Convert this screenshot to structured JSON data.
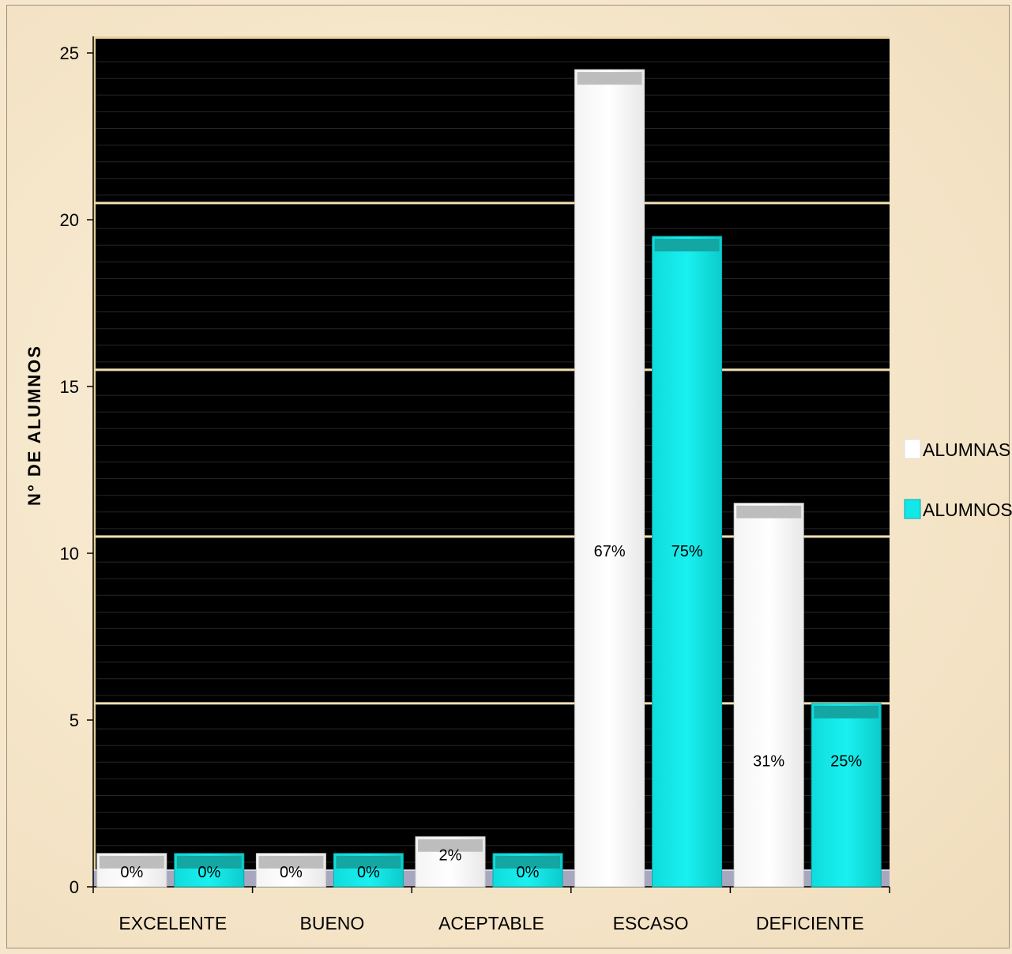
{
  "chart_data": {
    "type": "bar",
    "title": "",
    "xlabel": "",
    "ylabel": "N° DE ALUMNOS",
    "categories": [
      "EXCELENTE",
      "BUENO",
      "ACEPTABLE",
      "ESCASO",
      "DEFICIENTE"
    ],
    "series": [
      {
        "name": "ALUMNAS",
        "color": "#ffffff",
        "values": [
          1,
          1,
          1.5,
          24.5,
          11.5
        ],
        "labels": [
          "0%",
          "0%",
          "2%",
          "67%",
          "31%"
        ]
      },
      {
        "name": "ALUMNOS",
        "color": "#12e8e8",
        "values": [
          1,
          1,
          1,
          19.5,
          5.5
        ],
        "labels": [
          "0%",
          "0%",
          "0%",
          "75%",
          "25%"
        ]
      }
    ],
    "ylim": [
      0,
      25
    ],
    "yticks": [
      0,
      5,
      10,
      15,
      20,
      25
    ],
    "grid": true,
    "legend": "right",
    "plot_background": "#000000",
    "gridline_color": "#f3e2b6"
  }
}
